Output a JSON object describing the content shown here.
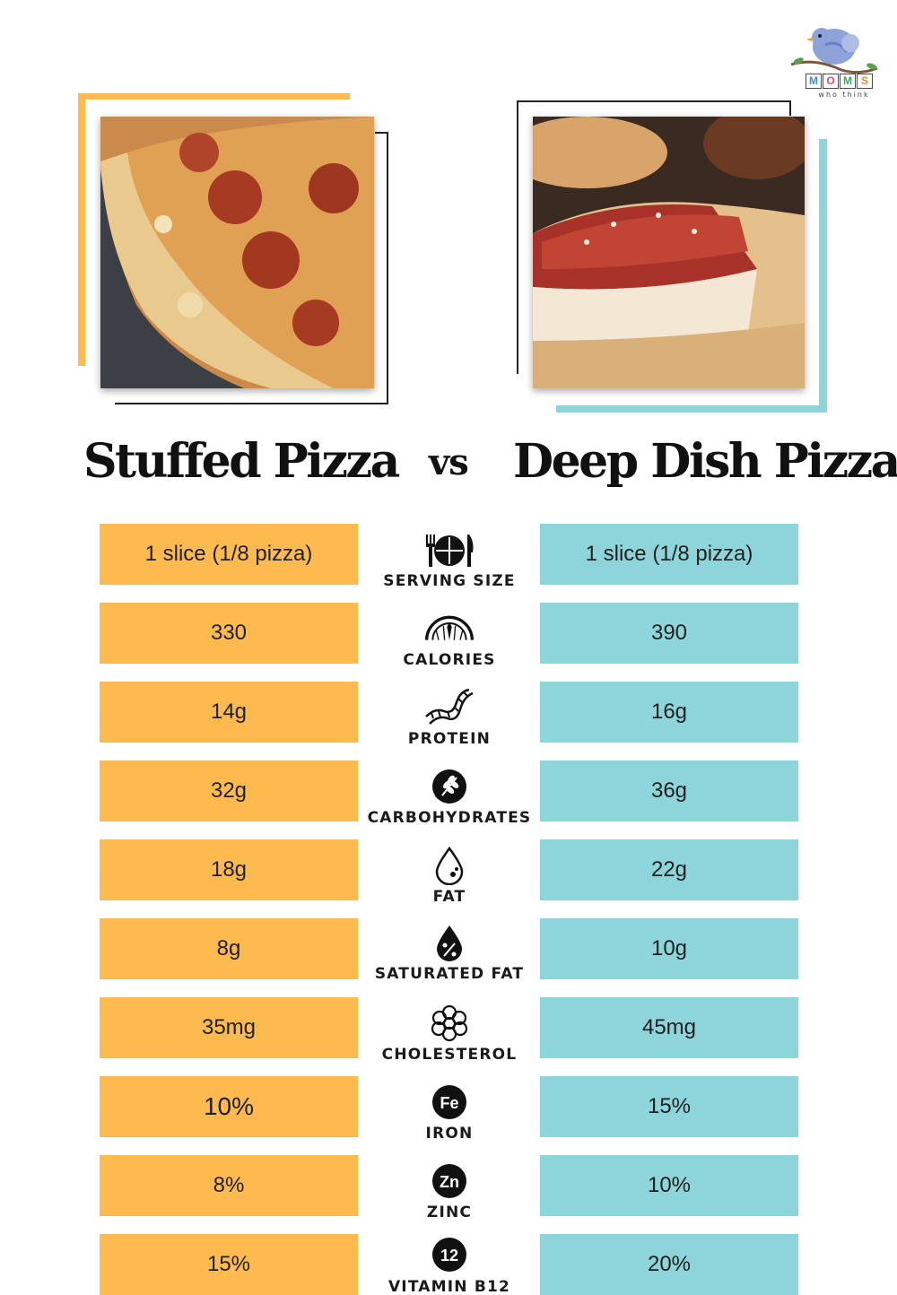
{
  "logo": {
    "letters": [
      "M",
      "O",
      "M",
      "S"
    ],
    "tagline": "who think"
  },
  "titles": {
    "left": "Stuffed Pizza",
    "vs": "vs",
    "right": "Deep Dish Pizza"
  },
  "colors": {
    "left_accent": "#fdbb4f",
    "right_accent": "#8ed5db"
  },
  "rows": [
    {
      "label": "SERVING SIZE",
      "icon": "utensils-plate-icon",
      "left": "1 slice (1/8 pizza)",
      "right": "1 slice (1/8 pizza)"
    },
    {
      "label": "CALORIES",
      "icon": "gauge-icon",
      "left": "330",
      "right": "390"
    },
    {
      "label": "PROTEIN",
      "icon": "protein-helix-icon",
      "left": "14g",
      "right": "16g"
    },
    {
      "label": "CARBOHYDRATES",
      "icon": "wheat-icon",
      "left": "32g",
      "right": "36g"
    },
    {
      "label": "FAT",
      "icon": "droplet-icon",
      "left": "18g",
      "right": "22g"
    },
    {
      "label": "SATURATED FAT",
      "icon": "percent-drop-icon",
      "left": "8g",
      "right": "10g"
    },
    {
      "label": "CHOLESTEROL",
      "icon": "cholesterol-molecule-icon",
      "left": "35mg",
      "right": "45mg"
    },
    {
      "label": "IRON",
      "icon": "iron-fe-icon",
      "icon_text": "Fe",
      "left": "10%",
      "right": "15%"
    },
    {
      "label": "ZINC",
      "icon": "zinc-zn-icon",
      "icon_text": "Zn",
      "left": "8%",
      "right": "10%"
    },
    {
      "label": "VITAMIN B12",
      "icon": "vitamin-b12-icon",
      "icon_text": "12",
      "left": "15%",
      "right": "20%"
    }
  ]
}
